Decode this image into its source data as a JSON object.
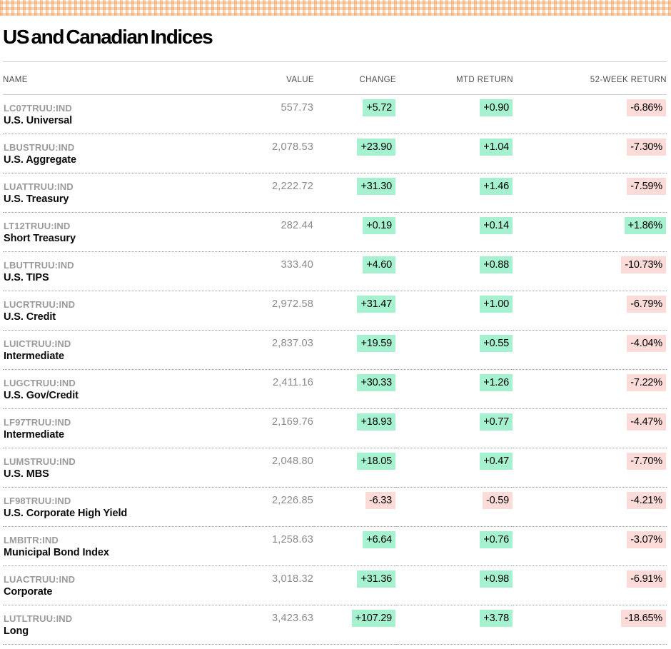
{
  "page": {
    "title": "US and Canadian Indices"
  },
  "colors": {
    "positive_badge_bg": "#a6f2d0",
    "negative_badge_bg": "#fcdbd9",
    "banner_orange": "#f0964b",
    "ticker_gray": "#9b9b9b",
    "value_gray": "#8a8a8a",
    "header_gray": "#4f4f4f"
  },
  "table": {
    "headers": [
      "NAME",
      "VALUE",
      "CHANGE",
      "MTD RETURN",
      "52-WEEK RETURN"
    ],
    "rows": [
      {
        "ticker": "LC07TRUU:IND",
        "name": "U.S. Universal",
        "value": "557.73",
        "change": "+5.72",
        "mtd_return": "+0.90",
        "week52_return": "-6.86%"
      },
      {
        "ticker": "LBUSTRUU:IND",
        "name": "U.S. Aggregate",
        "value": "2,078.53",
        "change": "+23.90",
        "mtd_return": "+1.04",
        "week52_return": "-7.30%"
      },
      {
        "ticker": "LUATTRUU:IND",
        "name": "U.S. Treasury",
        "value": "2,222.72",
        "change": "+31.30",
        "mtd_return": "+1.46",
        "week52_return": "-7.59%"
      },
      {
        "ticker": "LT12TRUU:IND",
        "name": "Short Treasury",
        "value": "282.44",
        "change": "+0.19",
        "mtd_return": "+0.14",
        "week52_return": "+1.86%"
      },
      {
        "ticker": "LBUTTRUU:IND",
        "name": "U.S. TIPS",
        "value": "333.40",
        "change": "+4.60",
        "mtd_return": "+0.88",
        "week52_return": "-10.73%"
      },
      {
        "ticker": "LUCRTRUU:IND",
        "name": "U.S. Credit",
        "value": "2,972.58",
        "change": "+31.47",
        "mtd_return": "+1.00",
        "week52_return": "-6.79%"
      },
      {
        "ticker": "LUICTRUU:IND",
        "name": "Intermediate",
        "value": "2,837.03",
        "change": "+19.59",
        "mtd_return": "+0.55",
        "week52_return": "-4.04%"
      },
      {
        "ticker": "LUGCTRUU:IND",
        "name": "U.S. Gov/Credit",
        "value": "2,411.16",
        "change": "+30.33",
        "mtd_return": "+1.26",
        "week52_return": "-7.22%"
      },
      {
        "ticker": "LF97TRUU:IND",
        "name": "Intermediate",
        "value": "2,169.76",
        "change": "+18.93",
        "mtd_return": "+0.77",
        "week52_return": "-4.47%"
      },
      {
        "ticker": "LUMSTRUU:IND",
        "name": "U.S. MBS",
        "value": "2,048.80",
        "change": "+18.05",
        "mtd_return": "+0.47",
        "week52_return": "-7.70%"
      },
      {
        "ticker": "LF98TRUU:IND",
        "name": "U.S. Corporate High Yield",
        "value": "2,226.85",
        "change": "-6.33",
        "mtd_return": "-0.59",
        "week52_return": "-4.21%"
      },
      {
        "ticker": "LMBITR:IND",
        "name": "Municipal Bond Index",
        "value": "1,258.63",
        "change": "+6.64",
        "mtd_return": "+0.76",
        "week52_return": "-3.07%"
      },
      {
        "ticker": "LUACTRUU:IND",
        "name": "Corporate",
        "value": "3,018.32",
        "change": "+31.36",
        "mtd_return": "+0.98",
        "week52_return": "-6.91%"
      },
      {
        "ticker": "LUTLTRUU:IND",
        "name": "Long",
        "value": "3,423.63",
        "change": "+107.29",
        "mtd_return": "+3.78",
        "week52_return": "-18.65%"
      }
    ]
  },
  "chart_data": {
    "type": "table",
    "title": "US and Canadian Indices",
    "columns": [
      "NAME",
      "VALUE",
      "CHANGE",
      "MTD RETURN",
      "52-WEEK RETURN"
    ],
    "rows": [
      {
        "ticker": "LC07TRUU:IND",
        "name": "U.S. Universal",
        "value": 557.73,
        "change": 5.72,
        "mtd_return_pct": 0.9,
        "week52_return_pct": -6.86
      },
      {
        "ticker": "LBUSTRUU:IND",
        "name": "U.S. Aggregate",
        "value": 2078.53,
        "change": 23.9,
        "mtd_return_pct": 1.04,
        "week52_return_pct": -7.3
      },
      {
        "ticker": "LUATTRUU:IND",
        "name": "U.S. Treasury",
        "value": 2222.72,
        "change": 31.3,
        "mtd_return_pct": 1.46,
        "week52_return_pct": -7.59
      },
      {
        "ticker": "LT12TRUU:IND",
        "name": "Short Treasury",
        "value": 282.44,
        "change": 0.19,
        "mtd_return_pct": 0.14,
        "week52_return_pct": 1.86
      },
      {
        "ticker": "LBUTTRUU:IND",
        "name": "U.S. TIPS",
        "value": 333.4,
        "change": 4.6,
        "mtd_return_pct": 0.88,
        "week52_return_pct": -10.73
      },
      {
        "ticker": "LUCRTRUU:IND",
        "name": "U.S. Credit",
        "value": 2972.58,
        "change": 31.47,
        "mtd_return_pct": 1.0,
        "week52_return_pct": -6.79
      },
      {
        "ticker": "LUICTRUU:IND",
        "name": "Intermediate",
        "value": 2837.03,
        "change": 19.59,
        "mtd_return_pct": 0.55,
        "week52_return_pct": -4.04
      },
      {
        "ticker": "LUGCTRUU:IND",
        "name": "U.S. Gov/Credit",
        "value": 2411.16,
        "change": 30.33,
        "mtd_return_pct": 1.26,
        "week52_return_pct": -7.22
      },
      {
        "ticker": "LF97TRUU:IND",
        "name": "Intermediate",
        "value": 2169.76,
        "change": 18.93,
        "mtd_return_pct": 0.77,
        "week52_return_pct": -4.47
      },
      {
        "ticker": "LUMSTRUU:IND",
        "name": "U.S. MBS",
        "value": 2048.8,
        "change": 18.05,
        "mtd_return_pct": 0.47,
        "week52_return_pct": -7.7
      },
      {
        "ticker": "LF98TRUU:IND",
        "name": "U.S. Corporate High Yield",
        "value": 2226.85,
        "change": -6.33,
        "mtd_return_pct": -0.59,
        "week52_return_pct": -4.21
      },
      {
        "ticker": "LMBITR:IND",
        "name": "Municipal Bond Index",
        "value": 1258.63,
        "change": 6.64,
        "mtd_return_pct": 0.76,
        "week52_return_pct": -3.07
      },
      {
        "ticker": "LUACTRUU:IND",
        "name": "Corporate",
        "value": 3018.32,
        "change": 31.36,
        "mtd_return_pct": 0.98,
        "week52_return_pct": -6.91
      },
      {
        "ticker": "LUTLTRUU:IND",
        "name": "Long",
        "value": 3423.63,
        "change": 107.29,
        "mtd_return_pct": 3.78,
        "week52_return_pct": -18.65
      }
    ],
    "notes": "Positive change/return values shown on mint-green highlight, negative on light-pink highlight"
  }
}
